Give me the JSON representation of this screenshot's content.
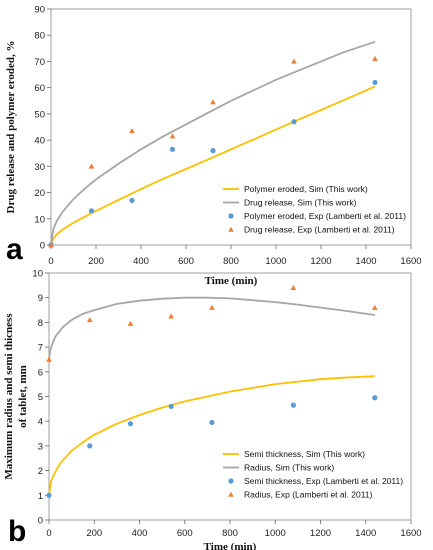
{
  "colors": {
    "model_eroded": "#FFC000",
    "model_release": "#A6A6A6",
    "exp_eroded": "#5B9BD5",
    "exp_release": "#ED7D31"
  },
  "chart_data": [
    {
      "type": "line",
      "panel_label": "a",
      "xlabel": "Time (min)",
      "ylabel": "Drug release and polymer eroded, %",
      "xlim": [
        0,
        1600
      ],
      "ylim": [
        0,
        90
      ],
      "xticks": [
        0,
        200,
        400,
        600,
        800,
        1000,
        1200,
        1400,
        1600
      ],
      "yticks": [
        0,
        10,
        20,
        30,
        40,
        50,
        60,
        70,
        80,
        90
      ],
      "grid": false,
      "legend_position": "bottom-right",
      "series": [
        {
          "name": "Polymer eroded, Sim (This work)",
          "kind": "line",
          "color": "#FFC000",
          "x": [
            0,
            10,
            25,
            50,
            100,
            150,
            200,
            300,
            400,
            500,
            600,
            700,
            800,
            900,
            1000,
            1100,
            1200,
            1300,
            1440
          ],
          "y": [
            0,
            2.5,
            4.0,
            5.8,
            8.5,
            10.8,
            13.0,
            17.2,
            21.3,
            25.3,
            29.0,
            32.7,
            36.5,
            40.2,
            44.0,
            47.8,
            51.5,
            55.2,
            60.5
          ]
        },
        {
          "name": "Drug release, Sim (This work)",
          "kind": "line",
          "color": "#A6A6A6",
          "x": [
            0,
            10,
            25,
            50,
            100,
            150,
            200,
            300,
            400,
            500,
            600,
            700,
            800,
            900,
            1000,
            1100,
            1200,
            1300,
            1440
          ],
          "y": [
            0,
            6.0,
            9.0,
            12.5,
            17.5,
            21.5,
            25.0,
            31.0,
            36.5,
            41.5,
            46.0,
            50.5,
            55.0,
            59.0,
            63.0,
            66.5,
            70.0,
            73.5,
            77.5
          ]
        },
        {
          "name": "Polymer eroded, Exp (Lamberti et al. 2011)",
          "kind": "scatter",
          "marker": "circle",
          "color": "#5B9BD5",
          "x": [
            0,
            180,
            360,
            540,
            720,
            1080,
            1440
          ],
          "y": [
            0,
            13,
            17,
            36.5,
            36,
            47,
            62
          ]
        },
        {
          "name": "Drug release, Exp (Lamberti et al. 2011)",
          "kind": "scatter",
          "marker": "triangle",
          "color": "#ED7D31",
          "x": [
            0,
            180,
            360,
            540,
            720,
            1080,
            1440
          ],
          "y": [
            0,
            30,
            43.5,
            41.5,
            54.5,
            70,
            71
          ]
        }
      ]
    },
    {
      "type": "line",
      "panel_label": "b",
      "xlabel": "Time (min)",
      "ylabel": "Maximum radius and semi thicness of tablet, mm",
      "xlim": [
        0,
        1600
      ],
      "ylim": [
        0,
        10
      ],
      "xticks": [
        0,
        200,
        400,
        600,
        800,
        1000,
        1200,
        1400,
        1600
      ],
      "yticks": [
        0,
        1,
        2,
        3,
        4,
        5,
        6,
        7,
        8,
        9,
        10
      ],
      "grid": false,
      "legend_position": "bottom-right",
      "series": [
        {
          "name": "Semi thickness, Sim (This work)",
          "kind": "line",
          "color": "#FFC000",
          "x": [
            0,
            10,
            25,
            50,
            100,
            150,
            200,
            300,
            400,
            500,
            600,
            700,
            800,
            900,
            1000,
            1100,
            1200,
            1300,
            1440
          ],
          "y": [
            1.0,
            1.6,
            1.9,
            2.3,
            2.8,
            3.15,
            3.45,
            3.9,
            4.25,
            4.55,
            4.8,
            5.0,
            5.2,
            5.35,
            5.5,
            5.6,
            5.7,
            5.76,
            5.82
          ]
        },
        {
          "name": "Radius, Sim (This work)",
          "kind": "line",
          "color": "#A6A6A6",
          "x": [
            0,
            5,
            15,
            30,
            60,
            100,
            150,
            200,
            300,
            400,
            500,
            600,
            700,
            800,
            900,
            1000,
            1100,
            1200,
            1300,
            1440
          ],
          "y": [
            6.5,
            6.85,
            7.15,
            7.45,
            7.8,
            8.1,
            8.35,
            8.5,
            8.75,
            8.88,
            8.96,
            9.0,
            9.0,
            8.97,
            8.9,
            8.82,
            8.72,
            8.6,
            8.48,
            8.3
          ]
        },
        {
          "name": "Semi thickness, Exp (Lamberti et al. 2011)",
          "kind": "scatter",
          "marker": "circle",
          "color": "#5B9BD5",
          "x": [
            0,
            180,
            360,
            540,
            720,
            1080,
            1440
          ],
          "y": [
            1.0,
            3.0,
            3.9,
            4.6,
            3.95,
            4.65,
            4.95
          ]
        },
        {
          "name": "Radius, Exp (Lamberti et al. 2011)",
          "kind": "scatter",
          "marker": "triangle",
          "color": "#ED7D31",
          "x": [
            0,
            180,
            360,
            540,
            720,
            1080,
            1440
          ],
          "y": [
            6.5,
            8.1,
            7.95,
            8.25,
            8.6,
            9.4,
            8.6
          ]
        }
      ]
    }
  ]
}
